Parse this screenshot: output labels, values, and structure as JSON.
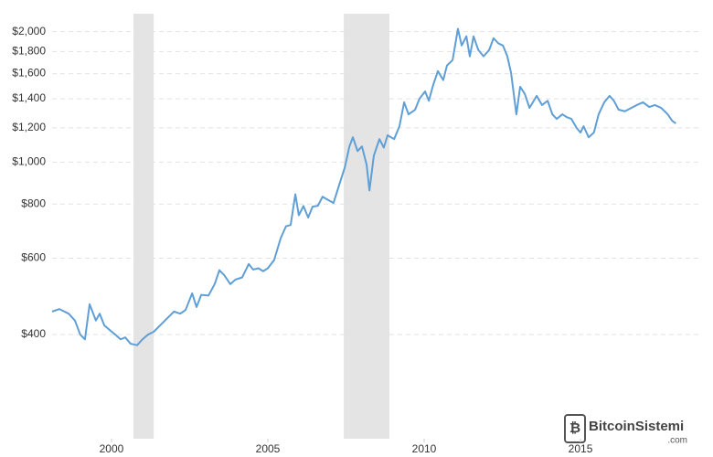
{
  "chart_data": {
    "type": "line",
    "yscale": "log",
    "grid": true,
    "color": "#5f9fd6",
    "recession_color": "#e4e4e4",
    "xlim": [
      1998.1,
      2018.8
    ],
    "ylim": [
      230,
      2200
    ],
    "xticks": [
      2000,
      2005,
      2010,
      2015
    ],
    "yticks": [
      {
        "value": 400,
        "label": "$400"
      },
      {
        "value": 600,
        "label": "$600"
      },
      {
        "value": 800,
        "label": "$800"
      },
      {
        "value": 1000,
        "label": "$1,000"
      },
      {
        "value": 1200,
        "label": "$1,200"
      },
      {
        "value": 1400,
        "label": "$1,400"
      },
      {
        "value": 1600,
        "label": "$1,600"
      },
      {
        "value": 1800,
        "label": "$1,800"
      },
      {
        "value": 2000,
        "label": "$2,000"
      }
    ],
    "recessions": [
      [
        2000.7,
        2001.35
      ],
      [
        2007.43,
        2008.89
      ]
    ],
    "x": [
      1998.1,
      1998.33,
      1998.63,
      1998.83,
      1999.0,
      1999.15,
      1999.3,
      1999.5,
      1999.62,
      1999.77,
      1999.94,
      2000.12,
      2000.29,
      2000.44,
      2000.61,
      2000.82,
      2000.99,
      2001.17,
      2001.35,
      2001.64,
      2001.85,
      2002.0,
      2002.2,
      2002.37,
      2002.58,
      2002.72,
      2002.87,
      2003.1,
      2003.3,
      2003.45,
      2003.6,
      2003.8,
      2003.97,
      2004.18,
      2004.39,
      2004.53,
      2004.7,
      2004.85,
      2005.0,
      2005.2,
      2005.41,
      2005.58,
      2005.73,
      2005.88,
      2005.99,
      2006.14,
      2006.29,
      2006.43,
      2006.6,
      2006.75,
      2006.9,
      2007.1,
      2007.3,
      2007.46,
      2007.61,
      2007.72,
      2007.87,
      2008.01,
      2008.16,
      2008.25,
      2008.39,
      2008.57,
      2008.71,
      2008.83,
      2009.04,
      2009.21,
      2009.36,
      2009.5,
      2009.71,
      2009.85,
      2010.03,
      2010.15,
      2010.29,
      2010.44,
      2010.61,
      2010.73,
      2010.91,
      2011.08,
      2011.2,
      2011.35,
      2011.46,
      2011.58,
      2011.73,
      2011.9,
      2012.08,
      2012.22,
      2012.37,
      2012.52,
      2012.66,
      2012.78,
      2012.95,
      2013.07,
      2013.22,
      2013.37,
      2013.6,
      2013.77,
      2013.95,
      2014.1,
      2014.24,
      2014.42,
      2014.56,
      2014.71,
      2014.88,
      2015.0,
      2015.1,
      2015.26,
      2015.43,
      2015.58,
      2015.76,
      2015.93,
      2016.07,
      2016.22,
      2016.42,
      2016.63,
      2016.8,
      2017.0,
      2017.2,
      2017.38,
      2017.58,
      2017.79,
      2017.93,
      2018.05
    ],
    "values": [
      452,
      458,
      447,
      431,
      400,
      390,
      470,
      431,
      447,
      420,
      410,
      400,
      390,
      394,
      381,
      378,
      390,
      400,
      406,
      426,
      441,
      452,
      447,
      456,
      498,
      463,
      494,
      492,
      523,
      563,
      549,
      523,
      536,
      542,
      582,
      565,
      569,
      560,
      569,
      594,
      667,
      711,
      716,
      843,
      754,
      792,
      745,
      789,
      793,
      832,
      820,
      805,
      894,
      971,
      1087,
      1141,
      1060,
      1087,
      986,
      860,
      1035,
      1130,
      1080,
      1153,
      1130,
      1210,
      1374,
      1289,
      1321,
      1400,
      1456,
      1385,
      1508,
      1622,
      1546,
      1671,
      1720,
      2030,
      1858,
      1951,
      1754,
      1951,
      1815,
      1754,
      1815,
      1932,
      1880,
      1858,
      1754,
      1606,
      1289,
      1492,
      1436,
      1334,
      1422,
      1354,
      1385,
      1289,
      1258,
      1289,
      1270,
      1258,
      1198,
      1170,
      1210,
      1141,
      1170,
      1289,
      1374,
      1422,
      1385,
      1321,
      1310,
      1334,
      1354,
      1374,
      1340,
      1354,
      1334,
      1289,
      1246,
      1228
    ],
    "watermark": {
      "name": "BitcoinSistemi",
      "domain": ".com"
    }
  }
}
